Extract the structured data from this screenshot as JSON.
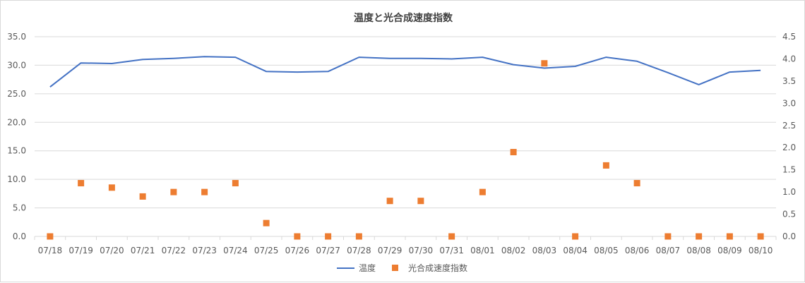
{
  "chart_data": {
    "type": "line",
    "title": "温度と光合成速度指数",
    "categories": [
      "07/18",
      "07/19",
      "07/20",
      "07/21",
      "07/22",
      "07/23",
      "07/24",
      "07/25",
      "07/26",
      "07/27",
      "07/28",
      "07/29",
      "07/30",
      "07/31",
      "08/01",
      "08/02",
      "08/03",
      "08/04",
      "08/05",
      "08/06",
      "08/07",
      "08/08",
      "08/09",
      "08/10"
    ],
    "series": [
      {
        "name": "温度",
        "type": "line",
        "axis": "left",
        "color": "#4472C4",
        "values": [
          26.2,
          30.4,
          30.3,
          31.0,
          31.2,
          31.5,
          31.4,
          28.9,
          28.8,
          28.9,
          31.4,
          31.2,
          31.2,
          31.1,
          31.4,
          30.1,
          29.5,
          29.8,
          31.4,
          30.7,
          28.7,
          26.6,
          28.8,
          29.1
        ]
      },
      {
        "name": "光合成速度指数",
        "type": "scatter",
        "axis": "right",
        "color": "#ED7D31",
        "values": [
          0.0,
          1.2,
          1.1,
          0.9,
          1.0,
          1.0,
          1.2,
          0.3,
          0.0,
          0.0,
          0.0,
          0.8,
          0.8,
          0.0,
          1.0,
          1.9,
          3.9,
          0.0,
          1.6,
          1.2,
          0.0,
          0.0,
          0.0,
          0.0
        ]
      }
    ],
    "y_left": {
      "min": 0,
      "max": 35,
      "step": 5,
      "ticks": [
        "0.0",
        "5.0",
        "10.0",
        "15.0",
        "20.0",
        "25.0",
        "30.0",
        "35.0"
      ]
    },
    "y_right": {
      "min": 0,
      "max": 4.5,
      "step": 0.5,
      "ticks": [
        "0.0",
        "0.5",
        "1.0",
        "1.5",
        "2.0",
        "2.5",
        "3.0",
        "3.5",
        "4.0",
        "4.5"
      ]
    },
    "grid": true,
    "legend_position": "bottom"
  }
}
